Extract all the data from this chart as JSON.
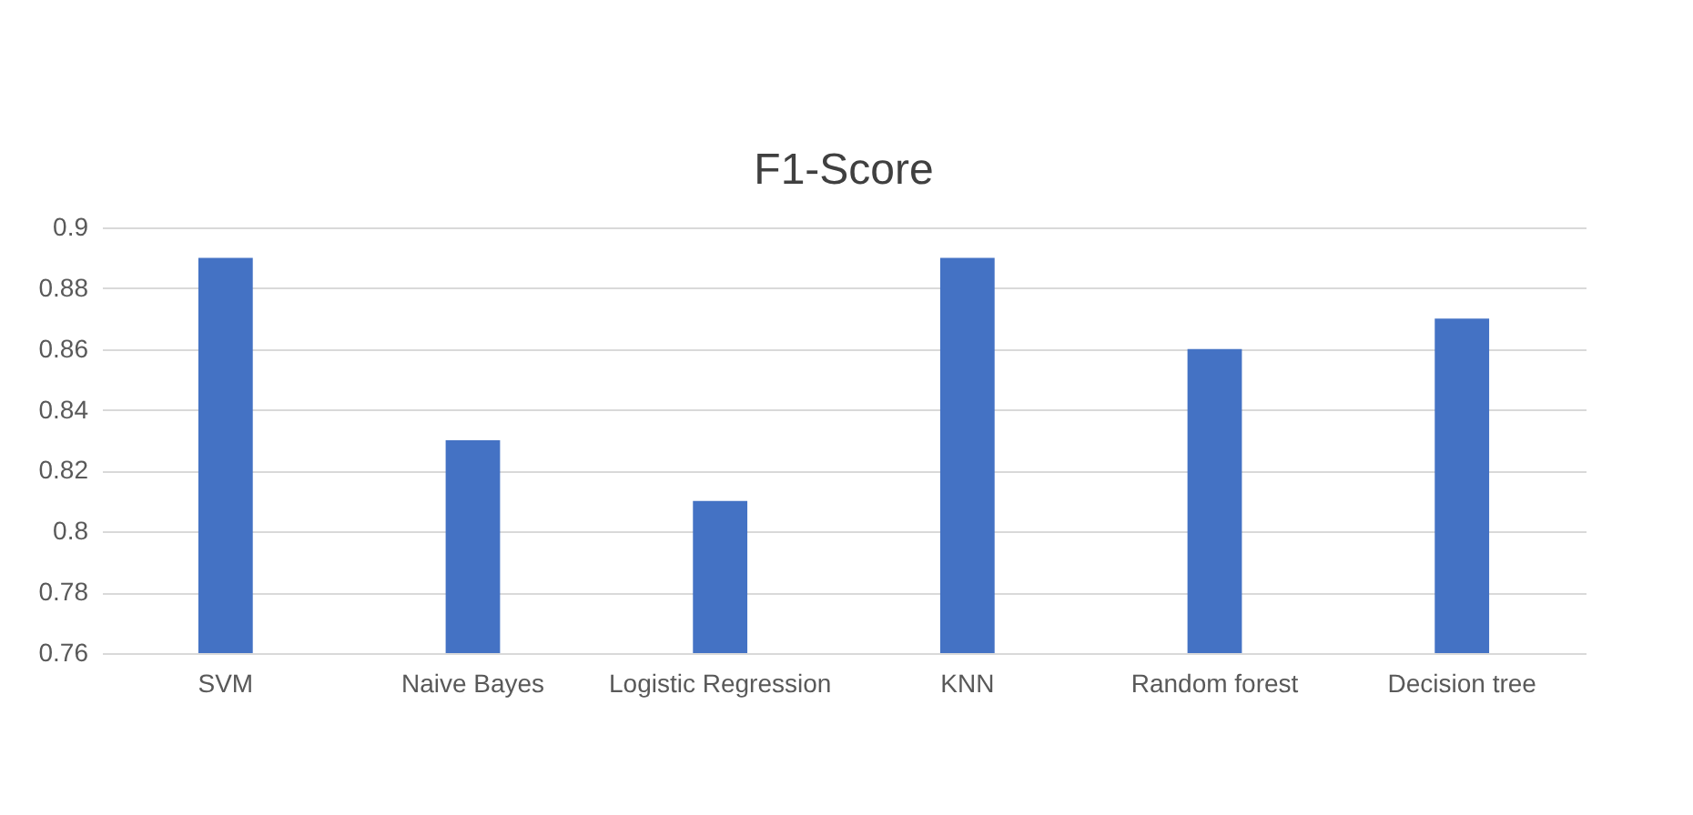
{
  "chart_data": {
    "type": "bar",
    "title": "F1-Score",
    "categories": [
      "SVM",
      "Naive Bayes",
      "Logistic Regression",
      "KNN",
      "Random forest",
      "Decision tree"
    ],
    "values": [
      0.89,
      0.83,
      0.81,
      0.89,
      0.86,
      0.87
    ],
    "color": "#4472c4",
    "ylim": [
      0.76,
      0.9
    ],
    "yticks": [
      0.76,
      0.78,
      0.8,
      0.82,
      0.84,
      0.86,
      0.88,
      0.9
    ],
    "grid": "y"
  }
}
